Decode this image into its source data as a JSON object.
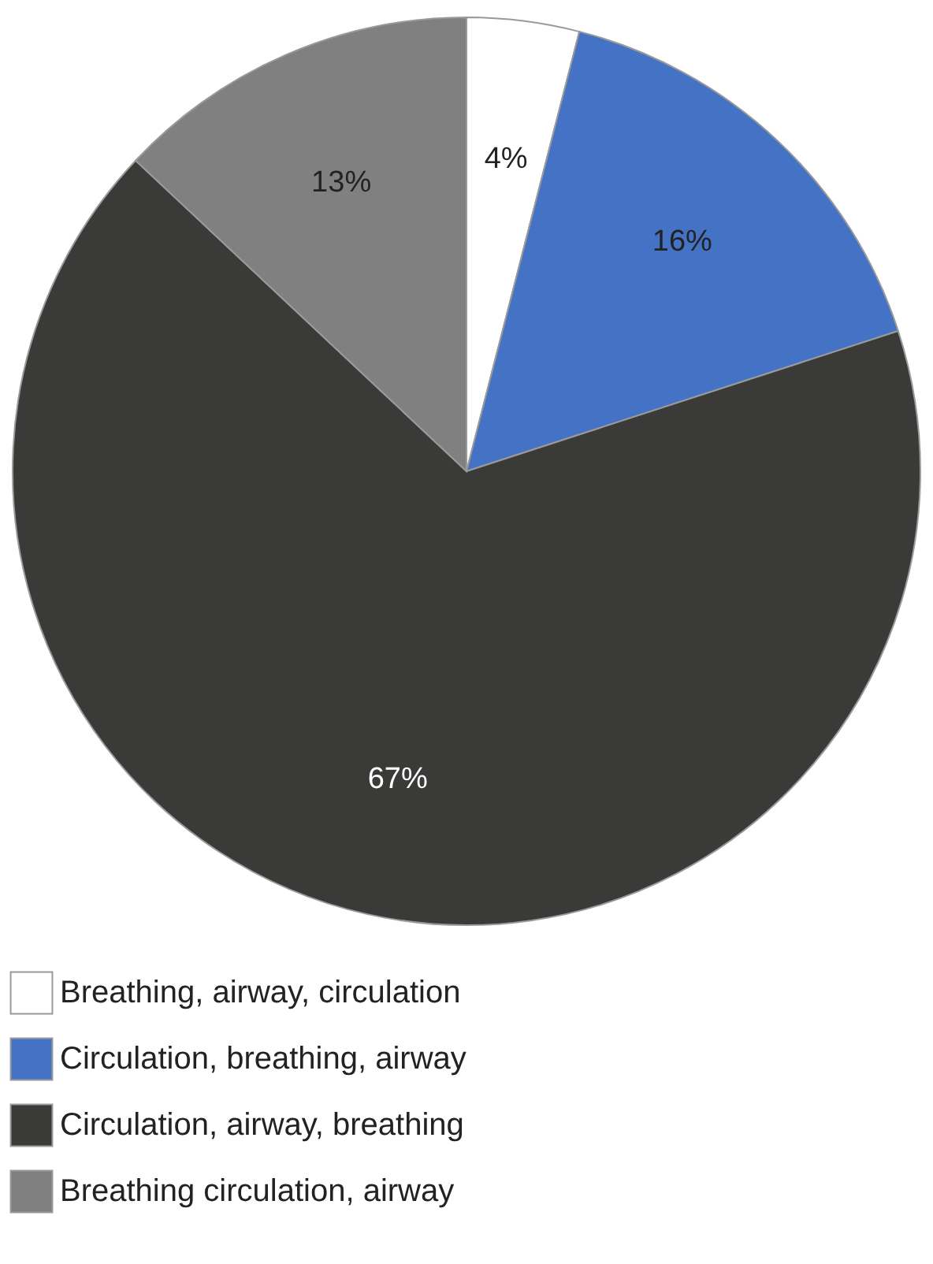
{
  "chart_data": {
    "type": "pie",
    "categories": [
      "Breathing, airway, circulation",
      "Circulation, breathing, airway",
      "Circulation, airway, breathing",
      "Breathing circulation, airway"
    ],
    "values": [
      4,
      16,
      67,
      13
    ],
    "colors": [
      "#ffffff",
      "#4472c4",
      "#3a3b38",
      "#808080"
    ],
    "value_labels": [
      "4%",
      "16%",
      "67%",
      "13%"
    ],
    "legend": "bottom"
  }
}
